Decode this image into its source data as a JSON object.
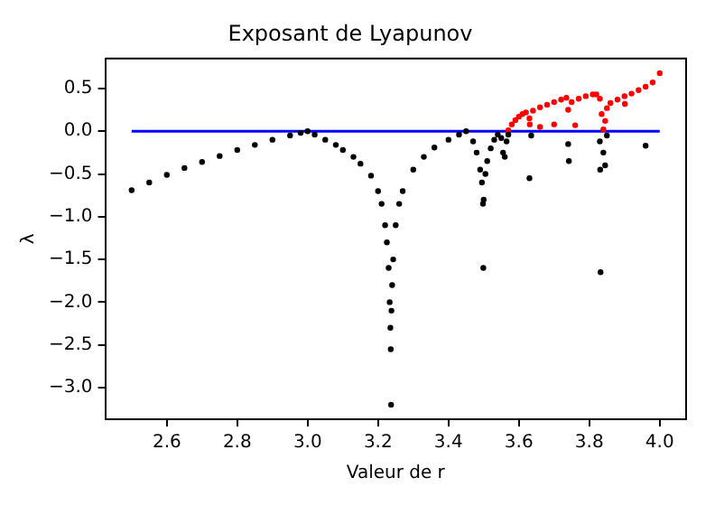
{
  "chart_data": {
    "type": "scatter",
    "title": "Exposant de Lyapunov",
    "xlabel": "Valeur de r",
    "ylabel": "λ",
    "xlim": [
      2.425,
      4.075
    ],
    "xticks": [
      2.6,
      2.8,
      {
        "value": 3.0,
        "label": "3.0"
      },
      3.2,
      3.4,
      3.6,
      3.8,
      {
        "value": 4.0,
        "label": "4.0"
      }
    ],
    "ylim": [
      -3.37,
      0.85
    ],
    "yticks": [
      0.5,
      {
        "value": 0,
        "label": "0.0"
      },
      {
        "value": -0.5,
        "label": "−0.5"
      },
      {
        "value": -1,
        "label": "−1.0"
      },
      {
        "value": -1.5,
        "label": "−1.5"
      },
      {
        "value": -2,
        "label": "−2.0"
      },
      {
        "value": -2.5,
        "label": "−2.5"
      },
      {
        "value": -3,
        "label": "−3.0"
      }
    ],
    "grid": false,
    "legend": false,
    "series": [
      {
        "marker": "circle",
        "color": "#000000",
        "x": [
          2.5,
          2.55,
          2.6,
          2.65,
          2.7,
          2.75,
          2.8,
          2.85,
          2.9,
          2.95,
          2.98,
          3.0,
          3.02,
          3.05,
          3.08,
          3.1,
          3.13,
          3.15,
          3.18,
          3.2,
          3.21,
          3.22,
          3.225,
          3.23,
          3.233,
          3.235,
          3.236,
          3.237,
          3.238,
          3.24,
          3.243,
          3.25,
          3.26,
          3.27,
          3.3,
          3.33,
          3.36,
          3.4,
          3.43,
          3.45,
          3.47,
          3.48,
          3.49,
          3.495,
          3.498,
          3.499,
          3.5,
          3.505,
          3.51,
          3.52,
          3.53,
          3.54,
          3.55,
          3.555,
          3.56,
          3.565,
          3.57,
          3.63,
          3.635,
          3.74,
          3.742,
          3.83,
          3.831,
          3.832,
          3.84,
          3.845,
          3.85,
          3.96
        ],
        "values": [
          -0.69,
          -0.6,
          -0.51,
          -0.43,
          -0.36,
          -0.29,
          -0.22,
          -0.16,
          -0.1,
          -0.05,
          -0.02,
          0,
          -0.04,
          -0.1,
          -0.16,
          -0.22,
          -0.3,
          -0.38,
          -0.52,
          -0.7,
          -0.85,
          -1.1,
          -1.3,
          -1.6,
          -2.0,
          -2.3,
          -2.55,
          -3.2,
          -2.1,
          -1.8,
          -1.5,
          -1.1,
          -0.85,
          -0.7,
          -0.45,
          -0.3,
          -0.19,
          -0.1,
          -0.04,
          0,
          -0.12,
          -0.25,
          -0.45,
          -0.6,
          -0.85,
          -1.6,
          -0.8,
          -0.5,
          -0.35,
          -0.2,
          -0.1,
          -0.04,
          -0.08,
          -0.25,
          -0.3,
          -0.12,
          -0.04,
          -0.55,
          -0.05,
          -0.15,
          -0.35,
          -0.12,
          -0.45,
          -1.65,
          -0.25,
          -0.4,
          -0.05,
          -0.17
        ]
      },
      {
        "marker": "circle",
        "color": "#ff0000",
        "x": [
          3.57,
          3.58,
          3.59,
          3.6,
          3.61,
          3.62,
          3.63,
          3.64,
          3.66,
          3.68,
          3.7,
          3.72,
          3.735,
          3.74,
          3.75,
          3.77,
          3.79,
          3.81,
          3.82,
          3.83,
          3.835,
          3.84,
          3.845,
          3.85,
          3.86,
          3.88,
          3.9,
          3.92,
          3.94,
          3.96,
          3.98,
          4.0,
          3.631,
          3.66,
          3.7,
          3.76,
          3.901
        ],
        "values": [
          0.01,
          0.08,
          0.13,
          0.17,
          0.2,
          0.22,
          0.15,
          0.24,
          0.28,
          0.31,
          0.34,
          0.37,
          0.39,
          0.25,
          0.34,
          0.38,
          0.41,
          0.43,
          0.43,
          0.38,
          0.2,
          0.02,
          0.12,
          0.27,
          0.33,
          0.37,
          0.41,
          0.44,
          0.48,
          0.52,
          0.57,
          0.68,
          0.08,
          0.05,
          0.08,
          0.07,
          0.32
        ]
      },
      {
        "type": "line",
        "color": "#0000ff",
        "x": [
          2.5,
          4.0
        ],
        "values": [
          0,
          0
        ]
      }
    ]
  }
}
